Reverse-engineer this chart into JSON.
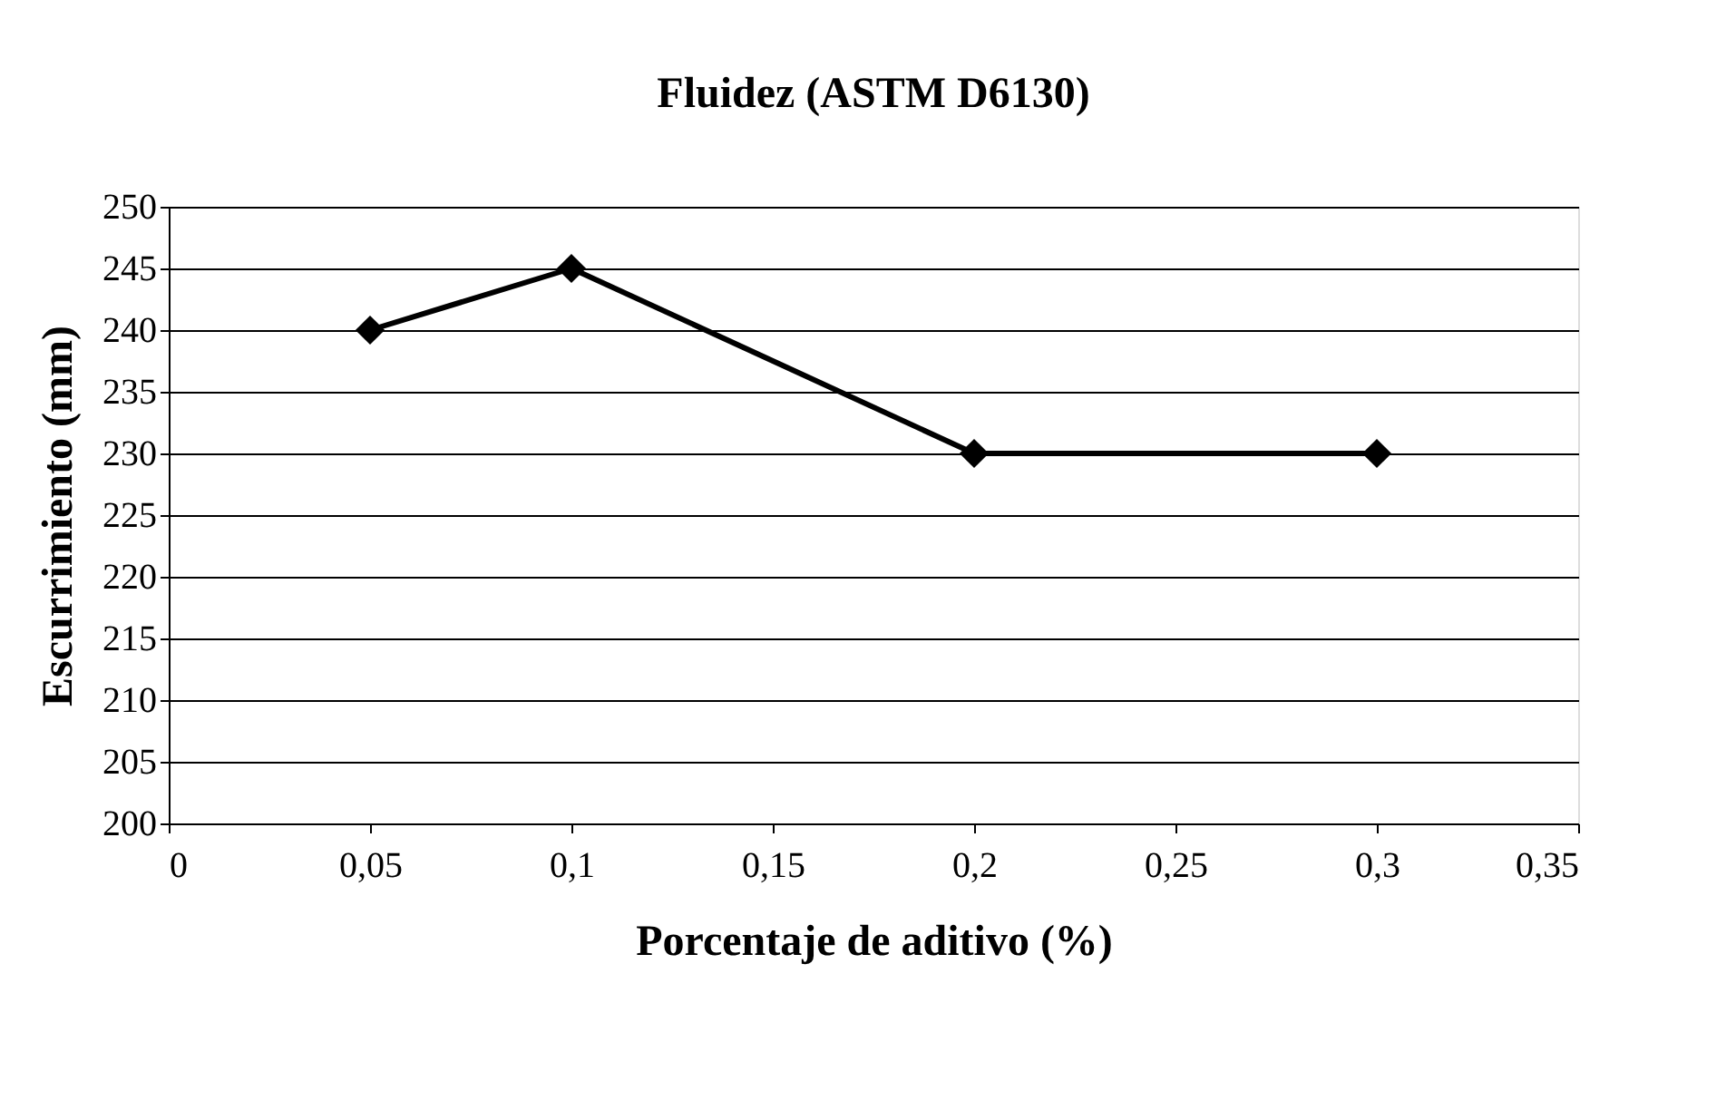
{
  "chart_data": {
    "type": "line",
    "title": "Fluidez (ASTM D6130)",
    "xlabel": "Porcentaje de aditivo (%)",
    "ylabel": "Escurrimiento (mm)",
    "x": [
      0.05,
      0.1,
      0.2,
      0.3
    ],
    "series": [
      {
        "color": "#000000",
        "values": [
          240,
          245,
          230,
          230
        ]
      }
    ],
    "xlim": [
      0,
      0.35
    ],
    "xticks": [
      0,
      {
        "value": 0.05,
        "label": "0,05"
      },
      {
        "value": 0.1,
        "label": "0,1"
      },
      {
        "value": 0.15,
        "label": "0,15"
      },
      {
        "value": 0.2,
        "label": "0,2"
      },
      {
        "value": 0.25,
        "label": "0,25"
      },
      {
        "value": 0.3,
        "label": "0,3"
      },
      {
        "value": 0.35,
        "label": "0,35"
      }
    ],
    "ylim": [
      200,
      250
    ],
    "yticks": [
      200,
      205,
      210,
      215,
      220,
      225,
      230,
      235,
      240,
      245,
      250
    ],
    "grid": "y",
    "marker": "diamond",
    "line_style": "solid"
  }
}
